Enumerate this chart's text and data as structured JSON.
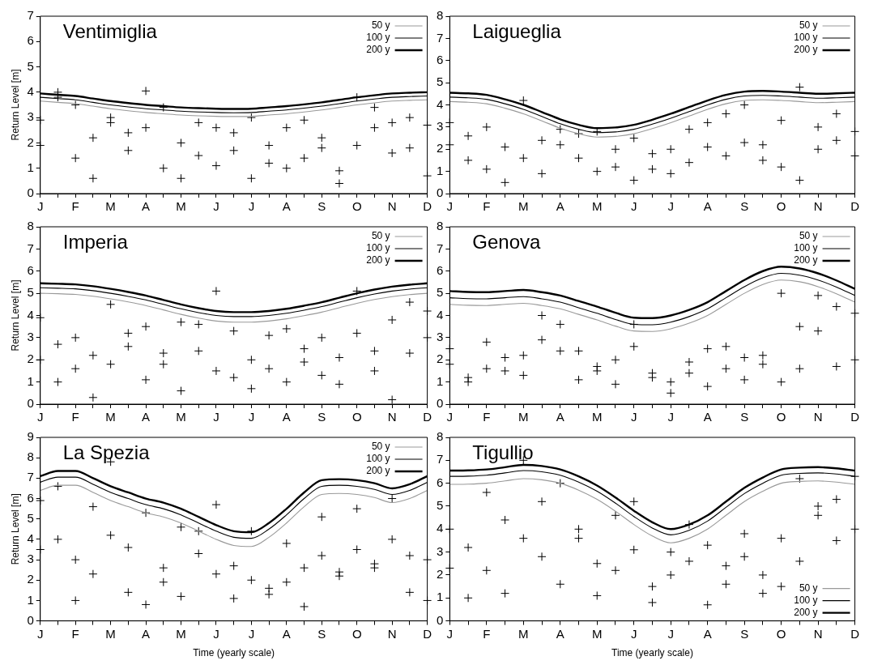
{
  "chart_data": [
    {
      "type": "line",
      "title": "Ventimiglia",
      "ylabel": "Return Level [m]",
      "categories": [
        "J",
        null,
        "F",
        null,
        "M",
        null,
        "A",
        null,
        "M",
        null,
        "J",
        null,
        "J",
        null,
        "A",
        null,
        "S",
        null,
        "O",
        null,
        "N",
        null,
        "D"
      ],
      "ylim": [
        0,
        7
      ],
      "yticks": [
        0,
        1,
        2,
        3,
        4,
        5,
        6,
        7
      ],
      "grid": false,
      "legend": "top right",
      "series": [
        {
          "type": "scatter",
          "color": "#000000",
          "marker": "cross",
          "values": [
            1.9,
            3.8,
            1.4,
            0.6,
            2.8,
            2.4,
            2.6,
            3.4,
            2.0,
            2.8,
            1.1,
            1.7,
            3.0,
            1.9,
            2.6,
            2.9,
            2.2,
            0.9,
            3.8,
            2.6,
            2.8,
            3.0,
            2.7
          ]
        },
        {
          "type": "scatter",
          "color": "#000000",
          "marker": "cross",
          "values": [
            2.9,
            4.0,
            3.5,
            2.2,
            3.0,
            1.7,
            4.05,
            1.0,
            0.6,
            1.5,
            2.6,
            2.4,
            0.6,
            1.2,
            1.0,
            1.4,
            1.8,
            0.4,
            1.9,
            3.4,
            1.6,
            1.8,
            0.7
          ]
        },
        {
          "name": "50 y",
          "color": "#999999",
          "values": [
            3.65,
            3.6,
            3.55,
            3.45,
            3.35,
            3.27,
            3.2,
            3.15,
            3.1,
            3.07,
            3.05,
            3.04,
            3.05,
            3.1,
            3.15,
            3.22,
            3.3,
            3.4,
            3.5,
            3.58,
            3.65,
            3.68,
            3.7
          ]
        },
        {
          "name": "100 y",
          "color": "#000000",
          "values": [
            3.8,
            3.75,
            3.7,
            3.6,
            3.5,
            3.42,
            3.35,
            3.3,
            3.25,
            3.22,
            3.2,
            3.19,
            3.2,
            3.25,
            3.3,
            3.37,
            3.45,
            3.55,
            3.65,
            3.73,
            3.8,
            3.83,
            3.85
          ]
        },
        {
          "name": "200 y",
          "color": "#000000",
          "values": [
            3.95,
            3.9,
            3.85,
            3.75,
            3.65,
            3.57,
            3.5,
            3.45,
            3.4,
            3.37,
            3.35,
            3.34,
            3.35,
            3.4,
            3.45,
            3.52,
            3.6,
            3.7,
            3.8,
            3.88,
            3.95,
            3.98,
            4.0
          ]
        }
      ]
    },
    {
      "type": "line",
      "title": "Laigueglia",
      "categories": [
        "J",
        null,
        "F",
        null,
        "M",
        null,
        "A",
        null,
        "M",
        null,
        "J",
        null,
        "J",
        null,
        "A",
        null,
        "S",
        null,
        "O",
        null,
        "N",
        null,
        "D"
      ],
      "ylim": [
        0,
        8
      ],
      "yticks": [
        0,
        1,
        2,
        3,
        4,
        5,
        6,
        7,
        8
      ],
      "grid": false,
      "legend": "top right",
      "series": [
        {
          "type": "scatter",
          "color": "#000000",
          "marker": "cross",
          "values": [
            2.2,
            1.5,
            3.0,
            2.1,
            4.2,
            2.4,
            2.2,
            1.6,
            1.0,
            2.0,
            2.5,
            1.1,
            2.0,
            2.9,
            2.1,
            3.6,
            2.3,
            1.5,
            3.3,
            4.8,
            3.0,
            2.4,
            2.8
          ]
        },
        {
          "type": "scatter",
          "color": "#000000",
          "marker": "cross",
          "values": [
            3.2,
            2.6,
            1.1,
            0.5,
            1.6,
            0.9,
            2.9,
            2.7,
            2.8,
            1.2,
            0.6,
            1.8,
            0.9,
            1.4,
            3.2,
            1.7,
            4.0,
            2.2,
            1.2,
            0.6,
            2.0,
            3.6,
            1.7
          ]
        },
        {
          "name": "50 y",
          "color": "#999999",
          "values": [
            4.15,
            4.12,
            4.05,
            3.85,
            3.6,
            3.28,
            2.95,
            2.7,
            2.55,
            2.58,
            2.7,
            2.93,
            3.2,
            3.5,
            3.8,
            4.05,
            4.2,
            4.23,
            4.2,
            4.15,
            4.1,
            4.12,
            4.15
          ]
        },
        {
          "name": "100 y",
          "color": "#000000",
          "values": [
            4.35,
            4.32,
            4.25,
            4.05,
            3.8,
            3.48,
            3.15,
            2.9,
            2.75,
            2.78,
            2.9,
            3.13,
            3.4,
            3.7,
            4.0,
            4.25,
            4.4,
            4.43,
            4.4,
            4.35,
            4.3,
            4.32,
            4.35
          ]
        },
        {
          "name": "200 y",
          "color": "#000000",
          "values": [
            4.55,
            4.52,
            4.45,
            4.25,
            4.0,
            3.68,
            3.35,
            3.1,
            2.95,
            2.98,
            3.1,
            3.33,
            3.6,
            3.9,
            4.2,
            4.45,
            4.6,
            4.63,
            4.6,
            4.55,
            4.5,
            4.52,
            4.55
          ]
        }
      ]
    },
    {
      "type": "line",
      "title": "Imperia",
      "ylabel": "Return Level [m]",
      "categories": [
        "J",
        null,
        "F",
        null,
        "M",
        null,
        "A",
        null,
        "M",
        null,
        "J",
        null,
        "J",
        null,
        "A",
        null,
        "S",
        null,
        "O",
        null,
        "N",
        null,
        "D"
      ],
      "ylim": [
        0,
        8
      ],
      "yticks": [
        0,
        1,
        2,
        3,
        4,
        5,
        6,
        7,
        8
      ],
      "grid": false,
      "legend": "top right",
      "series": [
        {
          "type": "scatter",
          "color": "#000000",
          "marker": "cross",
          "values": [
            2.0,
            2.7,
            3.0,
            2.2,
            4.5,
            3.2,
            1.1,
            2.3,
            3.7,
            2.4,
            5.1,
            1.2,
            2.0,
            3.1,
            3.4,
            1.9,
            3.0,
            2.1,
            3.2,
            2.4,
            3.8,
            2.3,
            4.2
          ]
        },
        {
          "type": "scatter",
          "color": "#000000",
          "marker": "cross",
          "values": [
            3.9,
            1.0,
            1.6,
            0.3,
            1.8,
            2.6,
            3.5,
            1.8,
            0.6,
            3.6,
            1.5,
            3.3,
            0.7,
            1.6,
            1.0,
            2.5,
            1.3,
            0.9,
            5.1,
            1.5,
            0.2,
            4.6,
            3.0
          ]
        },
        {
          "name": "50 y",
          "color": "#999999",
          "values": [
            5.0,
            4.98,
            4.95,
            4.87,
            4.75,
            4.61,
            4.45,
            4.25,
            4.05,
            3.88,
            3.75,
            3.7,
            3.7,
            3.75,
            3.85,
            3.99,
            4.15,
            4.35,
            4.55,
            4.72,
            4.85,
            4.94,
            5.0
          ]
        },
        {
          "name": "100 y",
          "color": "#000000",
          "values": [
            5.25,
            5.23,
            5.2,
            5.12,
            5.0,
            4.86,
            4.7,
            4.5,
            4.3,
            4.13,
            4.0,
            3.95,
            3.95,
            4.0,
            4.1,
            4.24,
            4.4,
            4.6,
            4.8,
            4.97,
            5.1,
            5.19,
            5.25
          ]
        },
        {
          "name": "200 y",
          "color": "#000000",
          "values": [
            5.45,
            5.43,
            5.4,
            5.32,
            5.2,
            5.06,
            4.9,
            4.7,
            4.5,
            4.33,
            4.2,
            4.15,
            4.15,
            4.2,
            4.3,
            4.44,
            4.6,
            4.8,
            5.0,
            5.17,
            5.3,
            5.39,
            5.45
          ]
        }
      ]
    },
    {
      "type": "line",
      "title": "Genova",
      "categories": [
        "J",
        null,
        "F",
        null,
        "M",
        null,
        "A",
        null,
        "M",
        null,
        "J",
        null,
        "J",
        null,
        "A",
        null,
        "S",
        null,
        "O",
        null,
        "N",
        null,
        "D"
      ],
      "ylim": [
        0,
        8
      ],
      "yticks": [
        0,
        1,
        2,
        3,
        4,
        5,
        6,
        7,
        8
      ],
      "grid": false,
      "legend": "top right",
      "series": [
        {
          "type": "scatter",
          "color": "#000000",
          "marker": "cross",
          "values": [
            1.8,
            1.2,
            2.8,
            1.5,
            2.2,
            2.9,
            3.6,
            2.4,
            1.5,
            2.0,
            2.6,
            1.4,
            0.5,
            1.9,
            2.5,
            1.6,
            2.1,
            1.8,
            5.0,
            1.6,
            3.3,
            1.7,
            4.1
          ]
        },
        {
          "type": "scatter",
          "color": "#000000",
          "marker": "cross",
          "values": [
            2.5,
            1.0,
            1.6,
            2.1,
            1.3,
            4.0,
            2.4,
            1.1,
            1.7,
            0.9,
            3.6,
            1.2,
            1.0,
            1.4,
            0.8,
            2.6,
            1.1,
            2.2,
            1.0,
            3.5,
            4.9,
            4.4,
            2.0
          ]
        },
        {
          "name": "50 y",
          "color": "#999999",
          "values": [
            4.5,
            4.46,
            4.45,
            4.5,
            4.55,
            4.45,
            4.3,
            4.05,
            3.8,
            3.52,
            3.3,
            3.28,
            3.4,
            3.65,
            4.0,
            4.5,
            5.0,
            5.4,
            5.6,
            5.52,
            5.3,
            4.98,
            4.6
          ]
        },
        {
          "name": "100 y",
          "color": "#000000",
          "values": [
            4.8,
            4.76,
            4.75,
            4.8,
            4.85,
            4.75,
            4.6,
            4.35,
            4.1,
            3.82,
            3.6,
            3.58,
            3.7,
            3.95,
            4.3,
            4.8,
            5.3,
            5.7,
            5.9,
            5.82,
            5.6,
            5.28,
            4.9
          ]
        },
        {
          "name": "200 y",
          "color": "#000000",
          "values": [
            5.1,
            5.06,
            5.05,
            5.1,
            5.15,
            5.05,
            4.9,
            4.65,
            4.4,
            4.12,
            3.9,
            3.88,
            4.0,
            4.25,
            4.6,
            5.1,
            5.6,
            6.0,
            6.2,
            6.12,
            5.9,
            5.58,
            5.2
          ]
        }
      ]
    },
    {
      "type": "line",
      "title": "La Spezia",
      "ylabel": "Return Level [m]",
      "xlabel": "Time (yearly scale)",
      "categories": [
        "J",
        null,
        "F",
        null,
        "M",
        null,
        "A",
        null,
        "M",
        null,
        "J",
        null,
        "J",
        null,
        "A",
        null,
        "S",
        null,
        "O",
        null,
        "N",
        null,
        "D"
      ],
      "ylim": [
        0,
        9
      ],
      "yticks": [
        0,
        1,
        2,
        3,
        4,
        5,
        6,
        7,
        8,
        9
      ],
      "grid": false,
      "legend": "top right",
      "series": [
        {
          "type": "scatter",
          "color": "#000000",
          "marker": "cross",
          "values": [
            3.5,
            4.0,
            3.0,
            2.3,
            7.8,
            3.6,
            5.3,
            2.6,
            4.6,
            3.3,
            5.7,
            2.7,
            4.4,
            1.6,
            3.8,
            2.6,
            3.2,
            2.4,
            3.5,
            2.8,
            4.0,
            3.2,
            3.0
          ]
        },
        {
          "type": "scatter",
          "color": "#000000",
          "marker": "cross",
          "values": [
            5.9,
            6.6,
            1.0,
            5.6,
            4.2,
            1.4,
            0.8,
            1.9,
            1.2,
            4.4,
            2.3,
            1.1,
            2.0,
            1.3,
            1.9,
            0.7,
            5.1,
            2.2,
            5.5,
            2.6,
            6.0,
            1.4,
            1.0
          ]
        },
        {
          "name": "50 y",
          "color": "#999999",
          "values": [
            6.4,
            6.65,
            6.65,
            6.3,
            5.9,
            5.6,
            5.3,
            5.1,
            4.8,
            4.4,
            4.0,
            3.7,
            3.65,
            4.1,
            4.8,
            5.6,
            6.2,
            6.25,
            6.2,
            6.05,
            5.8,
            6.0,
            6.4
          ]
        },
        {
          "name": "100 y",
          "color": "#000000",
          "values": [
            6.8,
            7.05,
            7.05,
            6.7,
            6.3,
            6.0,
            5.7,
            5.5,
            5.2,
            4.8,
            4.4,
            4.1,
            4.05,
            4.5,
            5.2,
            6.0,
            6.6,
            6.65,
            6.6,
            6.45,
            6.2,
            6.4,
            6.8
          ]
        },
        {
          "name": "200 y",
          "color": "#000000",
          "values": [
            7.1,
            7.35,
            7.35,
            7.0,
            6.6,
            6.3,
            6.0,
            5.8,
            5.5,
            5.1,
            4.7,
            4.4,
            4.35,
            4.8,
            5.5,
            6.3,
            6.9,
            6.95,
            6.9,
            6.75,
            6.5,
            6.7,
            7.1
          ]
        }
      ]
    },
    {
      "type": "line",
      "title": "Tigullio",
      "xlabel": "Time (yearly scale)",
      "categories": [
        "J",
        null,
        "F",
        null,
        "M",
        null,
        "A",
        null,
        "M",
        null,
        "J",
        null,
        "J",
        null,
        "A",
        null,
        "S",
        null,
        "O",
        null,
        "N",
        null,
        "D"
      ],
      "ylim": [
        0,
        8
      ],
      "yticks": [
        0,
        1,
        2,
        3,
        4,
        5,
        6,
        7,
        8
      ],
      "grid": false,
      "legend": "bottom right",
      "series": [
        {
          "type": "scatter",
          "color": "#000000",
          "marker": "cross",
          "values": [
            2.3,
            3.2,
            2.2,
            4.4,
            3.6,
            2.8,
            6.0,
            3.6,
            2.5,
            4.6,
            3.1,
            1.5,
            2.0,
            4.2,
            3.3,
            2.4,
            3.8,
            1.2,
            3.6,
            2.6,
            5.0,
            3.5,
            4.0
          ]
        },
        {
          "type": "scatter",
          "color": "#000000",
          "marker": "cross",
          "values": [
            4.0,
            1.0,
            5.6,
            1.2,
            7.0,
            5.2,
            1.6,
            4.0,
            1.1,
            2.2,
            5.2,
            0.8,
            3.0,
            2.6,
            0.7,
            1.6,
            2.8,
            2.0,
            1.5,
            6.2,
            4.6,
            5.3,
            6.3
          ]
        },
        {
          "name": "50 y",
          "color": "#999999",
          "values": [
            5.95,
            5.96,
            6.0,
            6.1,
            6.2,
            6.15,
            6.0,
            5.7,
            5.3,
            4.78,
            4.2,
            3.7,
            3.4,
            3.6,
            4.0,
            4.6,
            5.2,
            5.65,
            6.0,
            6.08,
            6.1,
            6.05,
            5.95
          ]
        },
        {
          "name": "100 y",
          "color": "#000000",
          "values": [
            6.3,
            6.31,
            6.35,
            6.45,
            6.55,
            6.5,
            6.35,
            6.05,
            5.65,
            5.13,
            4.55,
            4.05,
            3.75,
            3.95,
            4.35,
            4.95,
            5.55,
            6.0,
            6.35,
            6.43,
            6.45,
            6.4,
            6.3
          ]
        },
        {
          "name": "200 y",
          "color": "#000000",
          "values": [
            6.55,
            6.56,
            6.6,
            6.7,
            6.8,
            6.75,
            6.6,
            6.3,
            5.9,
            5.38,
            4.8,
            4.3,
            4.0,
            4.2,
            4.6,
            5.2,
            5.8,
            6.25,
            6.6,
            6.68,
            6.7,
            6.65,
            6.55
          ]
        }
      ]
    }
  ]
}
